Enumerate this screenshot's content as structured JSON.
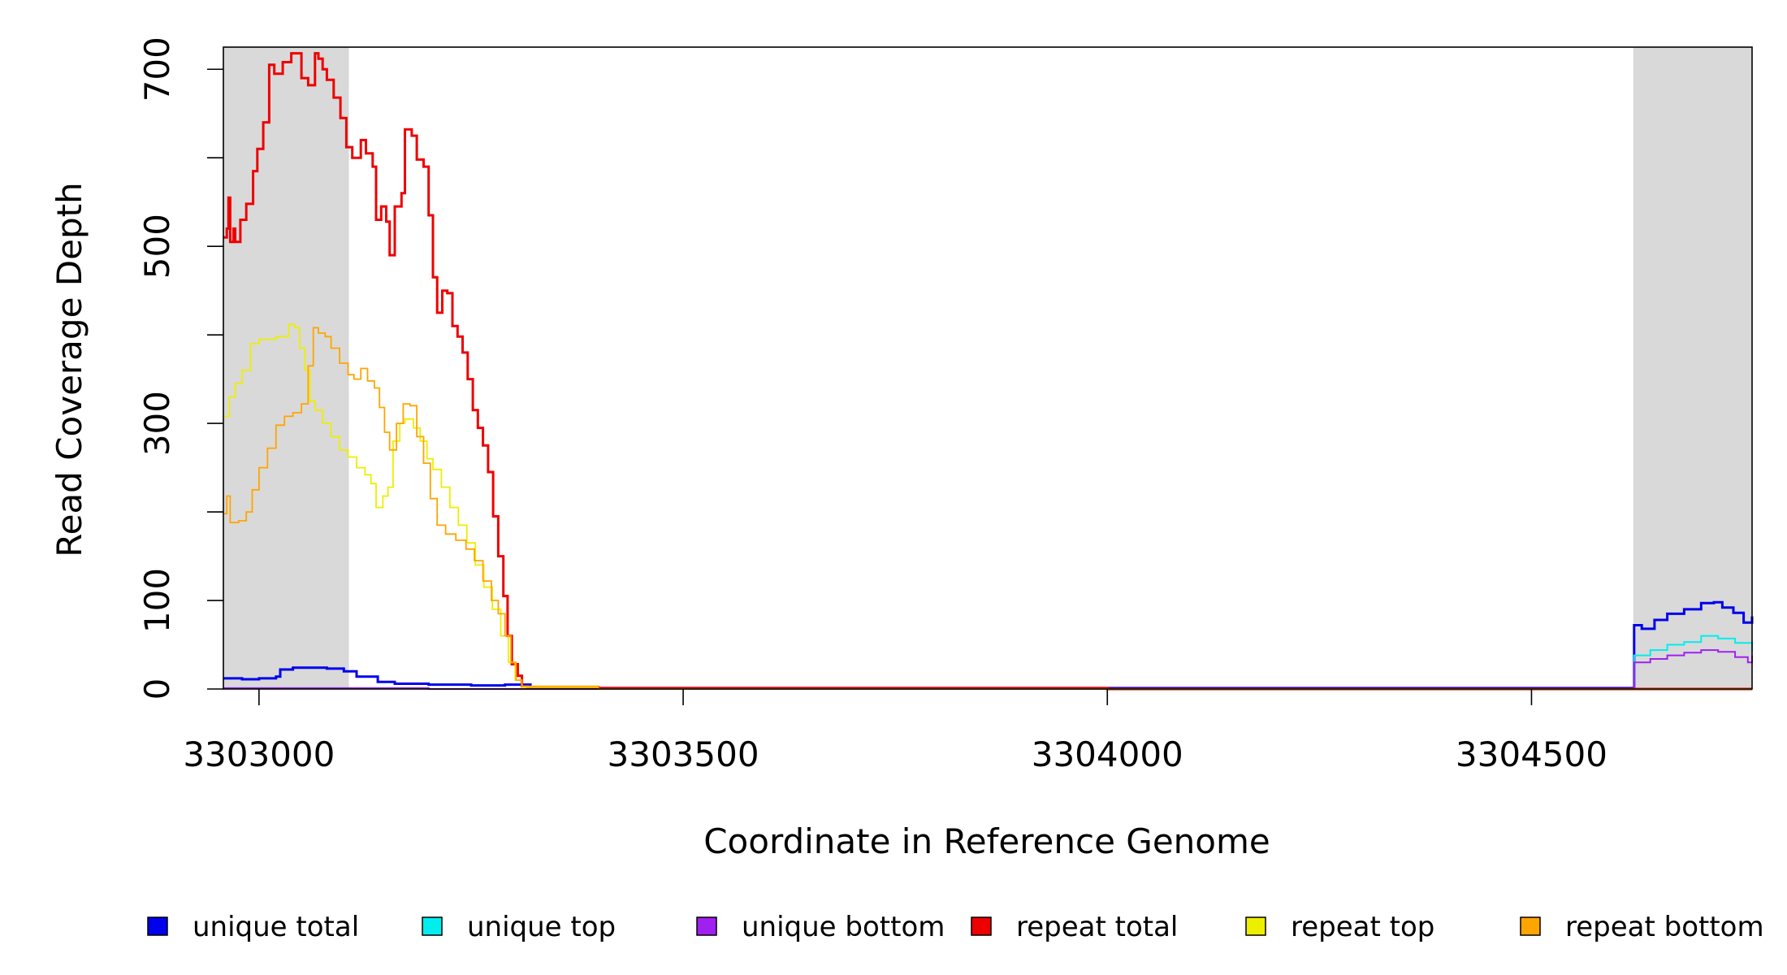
{
  "chart_data": {
    "type": "line",
    "xlabel": "Coordinate in Reference Genome",
    "ylabel": "Read Coverage Depth",
    "xlim": [
      3302958,
      3304760
    ],
    "ylim": [
      0,
      725
    ],
    "x_ticks": [
      3303000,
      3303500,
      3304000,
      3304500
    ],
    "x_tick_labels": [
      "3303000",
      "3303500",
      "3304000",
      "3304500"
    ],
    "y_ticks": [
      0,
      100,
      200,
      300,
      400,
      500,
      600,
      700
    ],
    "y_tick_labels": [
      "0",
      "",
      "",
      "300",
      "",
      "500",
      "",
      "700"
    ],
    "y_tick_labels_extra": {
      "100": "100"
    },
    "shaded_regions": [
      [
        3302958,
        3303106
      ],
      [
        3304620,
        3304760
      ]
    ],
    "grid": false,
    "legend_position": "bottom",
    "series": [
      {
        "name": "unique total",
        "color": "#0000ee",
        "width": 3,
        "points": [
          [
            3302958,
            12
          ],
          [
            3302980,
            11
          ],
          [
            3303000,
            12
          ],
          [
            3303020,
            14
          ],
          [
            3303025,
            22
          ],
          [
            3303040,
            24
          ],
          [
            3303060,
            24
          ],
          [
            3303080,
            23
          ],
          [
            3303100,
            20
          ],
          [
            3303115,
            14
          ],
          [
            3303140,
            8
          ],
          [
            3303160,
            6
          ],
          [
            3303200,
            5
          ],
          [
            3303250,
            4
          ],
          [
            3303290,
            5
          ],
          [
            3303320,
            2
          ],
          [
            3303360,
            1
          ],
          [
            3304620,
            0
          ],
          [
            3304621,
            72
          ],
          [
            3304630,
            68
          ],
          [
            3304645,
            78
          ],
          [
            3304660,
            85
          ],
          [
            3304680,
            90
          ],
          [
            3304700,
            97
          ],
          [
            3304715,
            98
          ],
          [
            3304725,
            92
          ],
          [
            3304738,
            86
          ],
          [
            3304750,
            75
          ],
          [
            3304760,
            82
          ]
        ]
      },
      {
        "name": "unique top",
        "color": "#00eeee",
        "width": 2,
        "points": [
          [
            3302958,
            1
          ],
          [
            3303100,
            1
          ],
          [
            3303200,
            0
          ],
          [
            3304620,
            0
          ],
          [
            3304621,
            38
          ],
          [
            3304640,
            44
          ],
          [
            3304660,
            50
          ],
          [
            3304680,
            53
          ],
          [
            3304700,
            60
          ],
          [
            3304720,
            57
          ],
          [
            3304740,
            52
          ],
          [
            3304760,
            42
          ]
        ]
      },
      {
        "name": "unique bottom",
        "color": "#a020f0",
        "width": 2,
        "points": [
          [
            3302958,
            1
          ],
          [
            3303100,
            1
          ],
          [
            3303200,
            0
          ],
          [
            3304620,
            0
          ],
          [
            3304621,
            30
          ],
          [
            3304640,
            34
          ],
          [
            3304660,
            38
          ],
          [
            3304680,
            41
          ],
          [
            3304700,
            44
          ],
          [
            3304720,
            42
          ],
          [
            3304740,
            36
          ],
          [
            3304755,
            30
          ],
          [
            3304760,
            38
          ]
        ]
      },
      {
        "name": "repeat total",
        "color": "#ee0000",
        "width": 3,
        "points": [
          [
            3302958,
            510
          ],
          [
            3302962,
            520
          ],
          [
            3302964,
            555
          ],
          [
            3302966,
            505
          ],
          [
            3302970,
            520
          ],
          [
            3302972,
            505
          ],
          [
            3302978,
            530
          ],
          [
            3302985,
            548
          ],
          [
            3302993,
            585
          ],
          [
            3302998,
            610
          ],
          [
            3303005,
            640
          ],
          [
            3303012,
            705
          ],
          [
            3303018,
            695
          ],
          [
            3303028,
            708
          ],
          [
            3303038,
            718
          ],
          [
            3303045,
            718
          ],
          [
            3303050,
            690
          ],
          [
            3303058,
            682
          ],
          [
            3303066,
            718
          ],
          [
            3303070,
            712
          ],
          [
            3303075,
            700
          ],
          [
            3303080,
            688
          ],
          [
            3303088,
            668
          ],
          [
            3303096,
            645
          ],
          [
            3303103,
            612
          ],
          [
            3303110,
            600
          ],
          [
            3303120,
            620
          ],
          [
            3303126,
            605
          ],
          [
            3303134,
            590
          ],
          [
            3303138,
            530
          ],
          [
            3303144,
            545
          ],
          [
            3303150,
            528
          ],
          [
            3303154,
            490
          ],
          [
            3303160,
            545
          ],
          [
            3303168,
            560
          ],
          [
            3303172,
            632
          ],
          [
            3303180,
            625
          ],
          [
            3303186,
            598
          ],
          [
            3303194,
            590
          ],
          [
            3303200,
            535
          ],
          [
            3303205,
            465
          ],
          [
            3303210,
            425
          ],
          [
            3303216,
            450
          ],
          [
            3303222,
            447
          ],
          [
            3303228,
            410
          ],
          [
            3303234,
            398
          ],
          [
            3303240,
            380
          ],
          [
            3303246,
            350
          ],
          [
            3303252,
            315
          ],
          [
            3303258,
            295
          ],
          [
            3303264,
            275
          ],
          [
            3303270,
            245
          ],
          [
            3303276,
            195
          ],
          [
            3303282,
            150
          ],
          [
            3303288,
            105
          ],
          [
            3303293,
            60
          ],
          [
            3303298,
            28
          ],
          [
            3303305,
            15
          ],
          [
            3303310,
            3
          ],
          [
            3303316,
            2
          ],
          [
            3303400,
            1
          ],
          [
            3303600,
            1
          ],
          [
            3304000,
            0
          ],
          [
            3304760,
            0
          ]
        ]
      },
      {
        "name": "repeat top",
        "color": "#eeee00",
        "width": 1.8,
        "points": [
          [
            3302958,
            308
          ],
          [
            3302965,
            330
          ],
          [
            3302972,
            345
          ],
          [
            3302980,
            360
          ],
          [
            3302990,
            390
          ],
          [
            3303000,
            395
          ],
          [
            3303020,
            398
          ],
          [
            3303035,
            412
          ],
          [
            3303042,
            408
          ],
          [
            3303048,
            385
          ],
          [
            3303054,
            360
          ],
          [
            3303060,
            325
          ],
          [
            3303066,
            315
          ],
          [
            3303075,
            300
          ],
          [
            3303085,
            285
          ],
          [
            3303095,
            270
          ],
          [
            3303105,
            262
          ],
          [
            3303115,
            250
          ],
          [
            3303125,
            242
          ],
          [
            3303132,
            232
          ],
          [
            3303138,
            205
          ],
          [
            3303146,
            218
          ],
          [
            3303152,
            228
          ],
          [
            3303158,
            280
          ],
          [
            3303166,
            300
          ],
          [
            3303172,
            305
          ],
          [
            3303182,
            295
          ],
          [
            3303190,
            280
          ],
          [
            3303198,
            260
          ],
          [
            3303205,
            248
          ],
          [
            3303215,
            228
          ],
          [
            3303225,
            205
          ],
          [
            3303235,
            185
          ],
          [
            3303245,
            165
          ],
          [
            3303255,
            140
          ],
          [
            3303265,
            115
          ],
          [
            3303275,
            90
          ],
          [
            3303285,
            60
          ],
          [
            3303294,
            30
          ],
          [
            3303302,
            10
          ],
          [
            3303310,
            2
          ],
          [
            3303400,
            0
          ],
          [
            3304760,
            0
          ]
        ]
      },
      {
        "name": "repeat bottom",
        "color": "#ffa500",
        "width": 1.8,
        "points": [
          [
            3302958,
            198
          ],
          [
            3302962,
            218
          ],
          [
            3302966,
            188
          ],
          [
            3302976,
            190
          ],
          [
            3302985,
            200
          ],
          [
            3302992,
            225
          ],
          [
            3303000,
            250
          ],
          [
            3303010,
            272
          ],
          [
            3303020,
            298
          ],
          [
            3303030,
            308
          ],
          [
            3303040,
            312
          ],
          [
            3303050,
            322
          ],
          [
            3303058,
            365
          ],
          [
            3303064,
            408
          ],
          [
            3303070,
            402
          ],
          [
            3303078,
            398
          ],
          [
            3303085,
            385
          ],
          [
            3303095,
            368
          ],
          [
            3303105,
            355
          ],
          [
            3303112,
            350
          ],
          [
            3303120,
            362
          ],
          [
            3303128,
            348
          ],
          [
            3303136,
            340
          ],
          [
            3303142,
            318
          ],
          [
            3303148,
            290
          ],
          [
            3303154,
            270
          ],
          [
            3303162,
            300
          ],
          [
            3303170,
            322
          ],
          [
            3303178,
            320
          ],
          [
            3303186,
            285
          ],
          [
            3303194,
            255
          ],
          [
            3303202,
            215
          ],
          [
            3303210,
            185
          ],
          [
            3303220,
            175
          ],
          [
            3303232,
            168
          ],
          [
            3303244,
            158
          ],
          [
            3303254,
            145
          ],
          [
            3303264,
            122
          ],
          [
            3303274,
            100
          ],
          [
            3303282,
            85
          ],
          [
            3303290,
            60
          ],
          [
            3303297,
            30
          ],
          [
            3303303,
            10
          ],
          [
            3303310,
            3
          ],
          [
            3303400,
            0
          ],
          [
            3304760,
            0
          ]
        ]
      }
    ]
  }
}
